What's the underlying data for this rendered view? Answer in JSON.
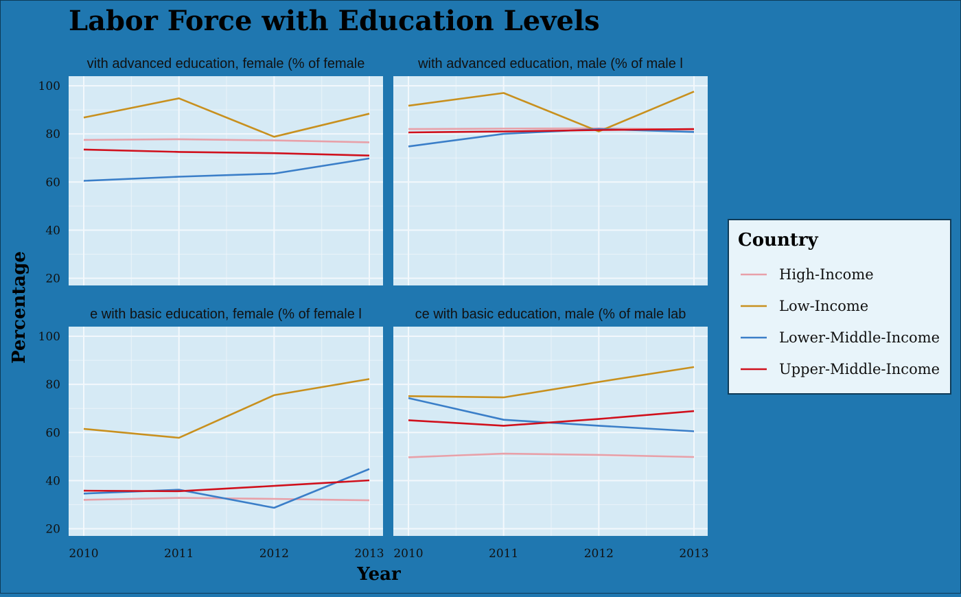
{
  "chart_data": {
    "type": "line",
    "title": "Labor Force with Education Levels",
    "xlabel": "Year",
    "ylabel": "Percentage",
    "x": [
      2010,
      2011,
      2012,
      2013
    ],
    "x_ticks": [
      "2010",
      "2011",
      "2012",
      "2013"
    ],
    "ylim": [
      17,
      104
    ],
    "y_ticks": [
      "20",
      "40",
      "60",
      "80",
      "100"
    ],
    "grid": true,
    "legend": {
      "title": "Country",
      "position": "right",
      "entries": [
        {
          "name": "High-Income",
          "color": "#e8a0a8"
        },
        {
          "name": "Low-Income",
          "color": "#c8901e"
        },
        {
          "name": "Lower-Middle-Income",
          "color": "#3a7ec8"
        },
        {
          "name": "Upper-Middle-Income",
          "color": "#d0101c"
        }
      ]
    },
    "panels": [
      {
        "strip": "Labor force with advanced education, female (% of female labor force with advanced education)",
        "strip_visible": "vith advanced education, female (% of femalе",
        "series": [
          {
            "name": "High-Income",
            "values": [
              77.5,
              77.8,
              77.3,
              76.5
            ]
          },
          {
            "name": "Low-Income",
            "values": [
              86.8,
              94.8,
              78.8,
              88.4
            ]
          },
          {
            "name": "Lower-Middle-Income",
            "values": [
              60.5,
              62.2,
              63.5,
              69.8
            ]
          },
          {
            "name": "Upper-Middle-Income",
            "values": [
              73.5,
              72.5,
              72.0,
              71.0
            ]
          }
        ]
      },
      {
        "strip": "Labor force with advanced education, male (% of male labor force with advanced education)",
        "strip_visible": "with advanced education, male (% of male l",
        "series": [
          {
            "name": "High-Income",
            "values": [
              82.0,
              82.2,
              82.3,
              81.8
            ]
          },
          {
            "name": "Low-Income",
            "values": [
              91.7,
              97.0,
              81.0,
              97.6
            ]
          },
          {
            "name": "Lower-Middle-Income",
            "values": [
              74.8,
              80.0,
              82.0,
              80.8
            ]
          },
          {
            "name": "Upper-Middle-Income",
            "values": [
              80.6,
              81.0,
              81.6,
              82.0
            ]
          }
        ]
      },
      {
        "strip": "Labor force with basic education, female (% of female labor force with basic education)",
        "strip_visible": "e with basic education, female (% of female l",
        "series": [
          {
            "name": "High-Income",
            "values": [
              32.0,
              32.8,
              32.4,
              31.8
            ]
          },
          {
            "name": "Low-Income",
            "values": [
              61.5,
              57.8,
              75.5,
              82.2
            ]
          },
          {
            "name": "Lower-Middle-Income",
            "values": [
              34.6,
              36.2,
              28.7,
              44.8
            ]
          },
          {
            "name": "Upper-Middle-Income",
            "values": [
              35.8,
              35.6,
              37.8,
              40.1
            ]
          }
        ]
      },
      {
        "strip": "Labor force with basic education, male (% of male labor force with basic education)",
        "strip_visible": "ce with basic education, male (% of male lab",
        "series": [
          {
            "name": "High-Income",
            "values": [
              49.7,
              51.2,
              50.7,
              49.8
            ]
          },
          {
            "name": "Low-Income",
            "values": [
              75.1,
              74.6,
              81.0,
              87.2
            ]
          },
          {
            "name": "Lower-Middle-Income",
            "values": [
              74.3,
              65.3,
              62.8,
              60.5
            ]
          },
          {
            "name": "Upper-Middle-Income",
            "values": [
              65.1,
              62.8,
              65.6,
              68.9
            ]
          }
        ]
      }
    ]
  },
  "colors": {
    "background": "#1f77b0",
    "panel": "#d6eaf5",
    "grid": "#f3f8fc",
    "legend_bg": "#e8f4fa",
    "legend_border": "#0e3a56"
  }
}
